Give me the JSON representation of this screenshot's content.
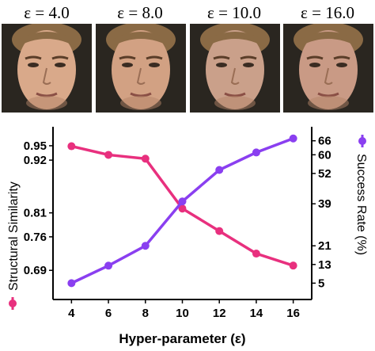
{
  "faces": [
    {
      "label": "ε = 4.0",
      "skin": "#d9a98a"
    },
    {
      "label": "ε = 8.0",
      "skin": "#d2a183"
    },
    {
      "label": "ε = 10.0",
      "skin": "#caa08a"
    },
    {
      "label": "ε = 16.0",
      "skin": "#c99a85"
    }
  ],
  "colors": {
    "ssim": "#e8307e",
    "success": "#8a3ff0",
    "hair": "#8a6a45",
    "background": "#2a2620"
  },
  "chart_data": {
    "type": "line",
    "x": [
      4,
      6,
      8,
      10,
      12,
      14,
      16
    ],
    "xlabel": "Hyper-parameter (ε)",
    "xticks": [
      "4",
      "6",
      "8",
      "10",
      "12",
      "14",
      "16"
    ],
    "xlim": [
      3,
      17
    ],
    "y_left": {
      "label": "Structural Similarity",
      "ticks": [
        "0.95",
        "0.92",
        "0.81",
        "0.76",
        "0.69"
      ],
      "tick_values": [
        0.95,
        0.92,
        0.81,
        0.76,
        0.69
      ],
      "lim": [
        0.6292,
        0.9896
      ]
    },
    "y_right": {
      "label": "Success Rate (%)",
      "ticks": [
        "66",
        "60",
        "52",
        "39",
        "21",
        "13",
        "5"
      ],
      "tick_values": [
        66,
        60,
        52,
        39,
        21,
        13,
        5
      ],
      "lim": [
        -2,
        72
      ]
    },
    "series": [
      {
        "name": "Structural Similarity",
        "axis": "left",
        "values": [
          0.949,
          0.931,
          0.923,
          0.819,
          0.772,
          0.725,
          0.7
        ]
      },
      {
        "name": "Success Rate (%)",
        "axis": "right",
        "values": [
          5,
          12.5,
          21,
          40,
          53.5,
          61,
          67
        ]
      }
    ]
  }
}
